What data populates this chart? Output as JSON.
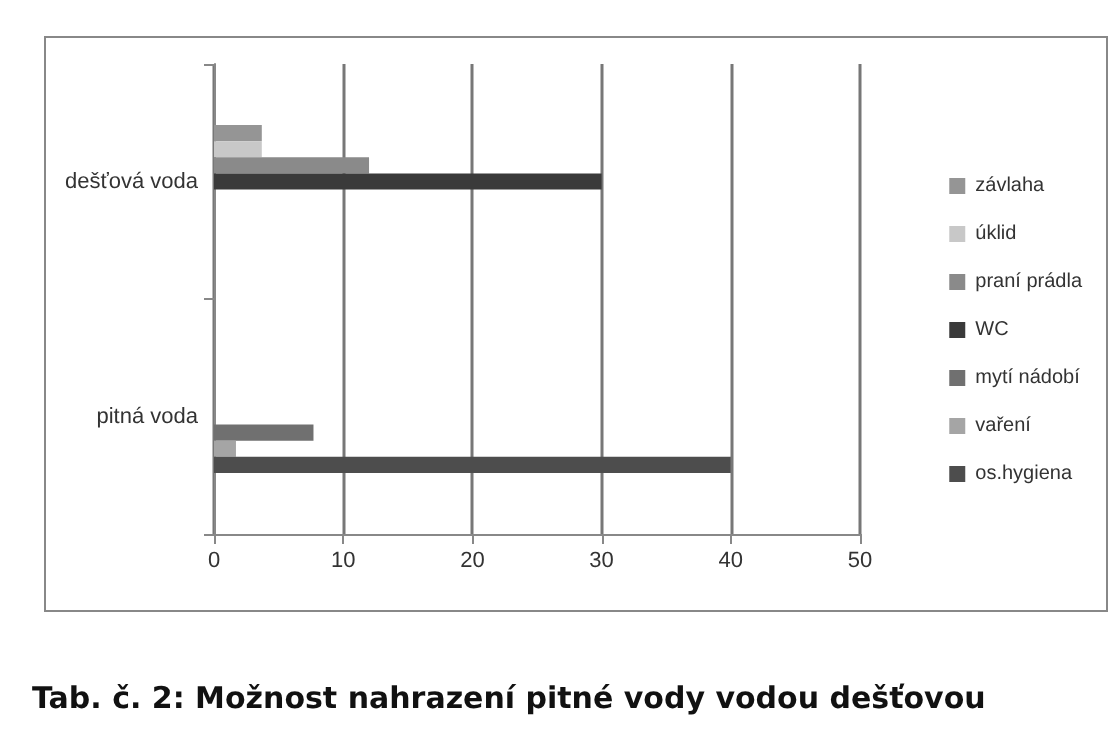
{
  "chart_data": {
    "type": "bar",
    "orientation": "horizontal",
    "title": "Tab. č. 2: Možnost nahrazení pitné vody vodou dešťovou",
    "categories": [
      "dešťová voda",
      "pitná voda"
    ],
    "series": [
      {
        "name": "závlaha",
        "color": "#959595",
        "values": [
          3.7,
          null
        ]
      },
      {
        "name": "úklid",
        "color": "#c8c8c8",
        "values": [
          3.7,
          null
        ]
      },
      {
        "name": "praní prádla",
        "color": "#8a8a8a",
        "values": [
          12,
          null
        ]
      },
      {
        "name": "WC",
        "color": "#3a3a3a",
        "values": [
          30,
          null
        ]
      },
      {
        "name": "mytí nádobí",
        "color": "#707070",
        "values": [
          null,
          7.7
        ]
      },
      {
        "name": "vaření",
        "color": "#a5a5a5",
        "values": [
          null,
          1.7
        ]
      },
      {
        "name": "os.hygiena",
        "color": "#4d4d4d",
        "values": [
          null,
          40
        ]
      }
    ],
    "xlim": [
      0,
      50
    ],
    "xticks": [
      0,
      10,
      20,
      30,
      40,
      50
    ],
    "grid": "x",
    "legend": "right"
  }
}
